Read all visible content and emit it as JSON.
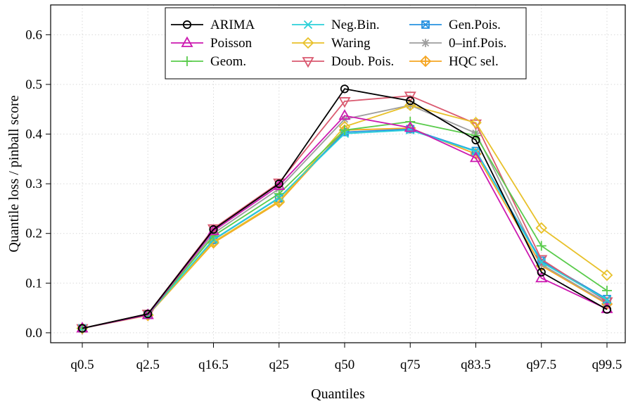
{
  "chart_data": {
    "type": "line",
    "title": "",
    "xlabel": "Quantiles",
    "ylabel": "Quantile loss / pinball score",
    "categories": [
      "q0.5",
      "q2.5",
      "q16.5",
      "q25",
      "q50",
      "q75",
      "q83.5",
      "q97.5",
      "q99.5"
    ],
    "ylim": [
      -0.02,
      0.66
    ],
    "yticks": [
      "0.0",
      "0.1",
      "0.2",
      "0.3",
      "0.4",
      "0.5",
      "0.6"
    ],
    "grid": true,
    "legend_position": "top-center",
    "series": [
      {
        "name": "ARIMA",
        "color": "#000000",
        "marker": "circle",
        "values": [
          0.009,
          0.038,
          0.208,
          0.3,
          0.491,
          0.467,
          0.388,
          0.122,
          0.047
        ]
      },
      {
        "name": "Poisson",
        "color": "#CC19B0",
        "marker": "triangle-up",
        "values": [
          0.009,
          0.036,
          0.205,
          0.296,
          0.437,
          0.413,
          0.352,
          0.11,
          0.048
        ]
      },
      {
        "name": "Geom.",
        "color": "#5ACB4C",
        "marker": "plus",
        "values": [
          0.009,
          0.037,
          0.195,
          0.28,
          0.408,
          0.425,
          0.397,
          0.175,
          0.085
        ]
      },
      {
        "name": "Neg.Bin.",
        "color": "#2BD0D8",
        "marker": "cross",
        "values": [
          0.009,
          0.036,
          0.188,
          0.272,
          0.401,
          0.408,
          0.365,
          0.142,
          0.066
        ]
      },
      {
        "name": "Waring",
        "color": "#E8C12A",
        "marker": "diamond",
        "values": [
          0.009,
          0.036,
          0.183,
          0.265,
          0.415,
          0.458,
          0.423,
          0.211,
          0.116
        ]
      },
      {
        "name": "Doub. Pois.",
        "color": "#DA5A70",
        "marker": "triangle-down",
        "values": [
          0.009,
          0.038,
          0.21,
          0.302,
          0.466,
          0.477,
          0.421,
          0.148,
          0.063
        ]
      },
      {
        "name": "Gen.Pois.",
        "color": "#2792E0",
        "marker": "square-x",
        "values": [
          0.009,
          0.036,
          0.187,
          0.271,
          0.404,
          0.41,
          0.366,
          0.145,
          0.068
        ]
      },
      {
        "name": "0–inf.Pois.",
        "color": "#9E9E9E",
        "marker": "asterisk",
        "values": [
          0.009,
          0.037,
          0.2,
          0.29,
          0.43,
          0.458,
          0.402,
          0.138,
          0.06
        ]
      },
      {
        "name": "HQC sel.",
        "color": "#F5A623",
        "marker": "diamond-plus",
        "values": [
          0.009,
          0.035,
          0.181,
          0.263,
          0.408,
          0.412,
          0.36,
          0.135,
          0.058
        ]
      }
    ]
  }
}
